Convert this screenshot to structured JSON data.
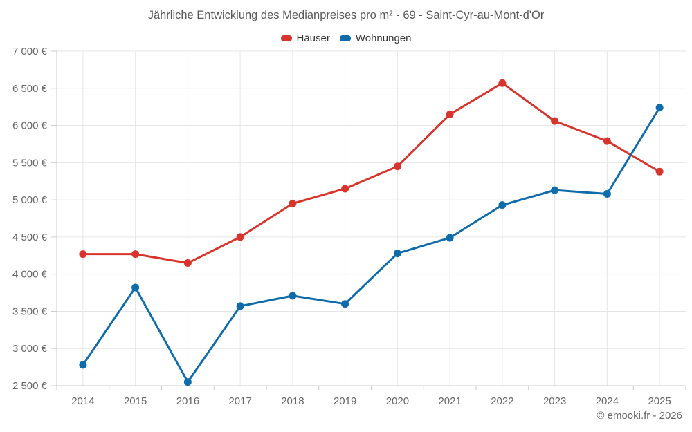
{
  "footer": {
    "credit": "© emooki.fr - 2026"
  },
  "chart_data": {
    "type": "line",
    "title": "Jährliche Entwicklung des Medianpreises pro m² - 69 - Saint-Cyr-au-Mont-d'Or",
    "categories": [
      "2014",
      "2015",
      "2016",
      "2017",
      "2018",
      "2019",
      "2020",
      "2021",
      "2022",
      "2023",
      "2024",
      "2025"
    ],
    "series": [
      {
        "name": "Häuser",
        "color": "#d8342c",
        "values": [
          4270,
          4270,
          4150,
          4500,
          4950,
          5150,
          5450,
          6150,
          6570,
          6060,
          5790,
          5380
        ]
      },
      {
        "name": "Wohnungen",
        "color": "#0f6cab",
        "values": [
          2780,
          3820,
          2550,
          3570,
          3710,
          3600,
          4280,
          4490,
          4930,
          5130,
          5080,
          6240
        ]
      }
    ],
    "ylabel": "",
    "xlabel": "",
    "ylim": [
      2500,
      7000
    ],
    "y_tick_step": 500,
    "y_tick_labels": [
      "2 500 €",
      "3 000 €",
      "3 500 €",
      "4 000 €",
      "4 500 €",
      "5 000 €",
      "5 500 €",
      "6 000 €",
      "6 500 €",
      "7 000 €"
    ],
    "grid": true,
    "legend_position": "top",
    "grid_color": "#e6e6e6",
    "axis_color": "#cccccc",
    "label_color": "#666666"
  }
}
